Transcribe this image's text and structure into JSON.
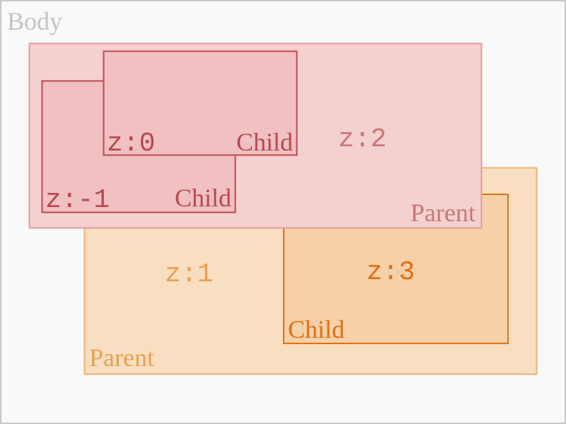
{
  "body": {
    "label": "Body"
  },
  "groups": [
    {
      "label": "Parent",
      "z": "z:1",
      "children": [
        {
          "label": "Child",
          "z": "z:3"
        }
      ]
    },
    {
      "label": "Parent",
      "z": "z:2",
      "children": [
        {
          "label": "Child",
          "z": "z:-1"
        },
        {
          "label": "Child",
          "z": "z:0"
        }
      ]
    }
  ]
}
